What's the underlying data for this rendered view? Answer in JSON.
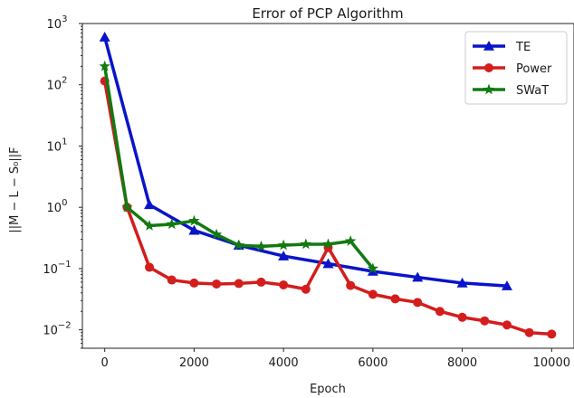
{
  "chart_data": {
    "type": "line",
    "title": "Error of PCP Algorithm",
    "xlabel": "Epoch",
    "ylabel": "||M − L − S₀||F",
    "yscale": "log",
    "xlim": [
      -500,
      10500
    ],
    "ylim": [
      0.005,
      1000
    ],
    "xticks": [
      0,
      2000,
      4000,
      6000,
      8000,
      10000
    ],
    "xtick_labels": [
      "0",
      "2000",
      "4000",
      "6000",
      "8000",
      "10000"
    ],
    "yticks": [
      0.01,
      0.1,
      1,
      10,
      100,
      1000
    ],
    "ytick_labels": [
      {
        "base": "10",
        "exp": "−2"
      },
      {
        "base": "10",
        "exp": "−1"
      },
      {
        "base": "10",
        "exp": "0"
      },
      {
        "base": "10",
        "exp": "1"
      },
      {
        "base": "10",
        "exp": "2"
      },
      {
        "base": "10",
        "exp": "3"
      }
    ],
    "grid": false,
    "legend_position": "top-right",
    "series": [
      {
        "name": "TE",
        "color": "#0a14c8",
        "marker": "triangle",
        "x": [
          0,
          1000,
          2000,
          3000,
          4000,
          5000,
          6000,
          7000,
          8000,
          9000
        ],
        "y": [
          600,
          1.1,
          0.42,
          0.24,
          0.16,
          0.12,
          0.09,
          0.072,
          0.058,
          0.052
        ]
      },
      {
        "name": "Power",
        "color": "#d41d1d",
        "marker": "circle",
        "x": [
          0,
          500,
          1000,
          1500,
          2000,
          2500,
          3000,
          3500,
          4000,
          4500,
          5000,
          5500,
          6000,
          6500,
          7000,
          7500,
          8000,
          8500,
          9000,
          9500,
          10000
        ],
        "y": [
          115,
          1.0,
          0.105,
          0.065,
          0.058,
          0.056,
          0.057,
          0.06,
          0.054,
          0.046,
          0.22,
          0.053,
          0.038,
          0.032,
          0.028,
          0.02,
          0.016,
          0.014,
          0.012,
          0.009,
          0.0085
        ]
      },
      {
        "name": "SWaT",
        "color": "#117a11",
        "marker": "star",
        "x": [
          0,
          500,
          1000,
          1500,
          2000,
          2500,
          3000,
          3500,
          4000,
          4500,
          5000,
          5500,
          6000
        ],
        "y": [
          200,
          1.0,
          0.5,
          0.53,
          0.6,
          0.36,
          0.24,
          0.23,
          0.24,
          0.25,
          0.25,
          0.28,
          0.1
        ]
      }
    ]
  }
}
